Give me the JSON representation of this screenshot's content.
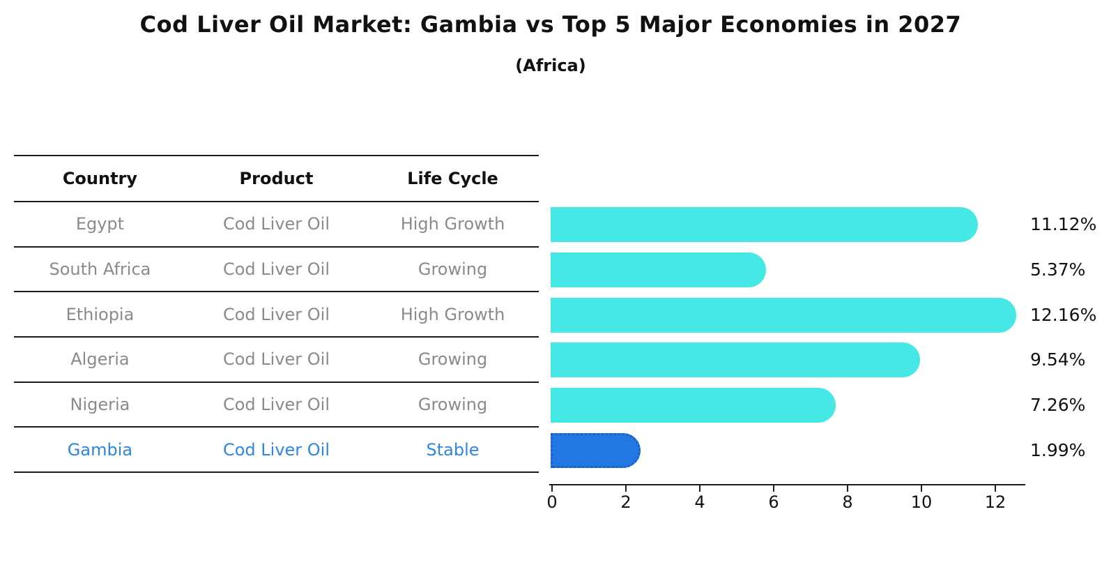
{
  "title": "Cod Liver Oil Market: Gambia vs Top 5 Major Economies in 2027",
  "subtitle": "(Africa)",
  "colors": {
    "bar_default": "#46E8E6",
    "bar_highlight": "#2377E1",
    "bar_highlight_border": "#1B60C8",
    "highlight_text": "#2E86DE",
    "cell_text": "#8A8A8A",
    "heading_text": "#111111"
  },
  "table": {
    "headers": [
      "Country",
      "Product",
      "Life Cycle"
    ],
    "rows": [
      {
        "country": "Egypt",
        "product": "Cod Liver Oil",
        "life_cycle": "High Growth"
      },
      {
        "country": "South Africa",
        "product": "Cod Liver Oil",
        "life_cycle": "Growing"
      },
      {
        "country": "Ethiopia",
        "product": "Cod Liver Oil",
        "life_cycle": "High Growth"
      },
      {
        "country": "Algeria",
        "product": "Cod Liver Oil",
        "life_cycle": "Growing"
      },
      {
        "country": "Nigeria",
        "product": "Cod Liver Oil",
        "life_cycle": "Growing"
      },
      {
        "country": "Gambia",
        "product": "Cod Liver Oil",
        "life_cycle": "Stable"
      }
    ]
  },
  "chart_data": {
    "type": "bar",
    "orientation": "horizontal",
    "title": "Cod Liver Oil Market: Gambia vs Top 5 Major Economies in 2027",
    "subtitle": "(Africa)",
    "categories": [
      "Egypt",
      "South Africa",
      "Ethiopia",
      "Algeria",
      "Nigeria",
      "Gambia"
    ],
    "values": [
      11.12,
      5.37,
      12.16,
      9.54,
      7.26,
      1.99
    ],
    "value_labels": [
      "11.12%",
      "5.37%",
      "12.16%",
      "9.54%",
      "7.26%",
      "1.99%"
    ],
    "unit": "%",
    "xlabel": "",
    "ylabel": "",
    "xlim": [
      0,
      12.8
    ],
    "x_ticks": [
      0,
      2,
      4,
      6,
      8,
      10,
      12
    ],
    "highlight_category": "Gambia",
    "grid": false,
    "legend": null
  }
}
